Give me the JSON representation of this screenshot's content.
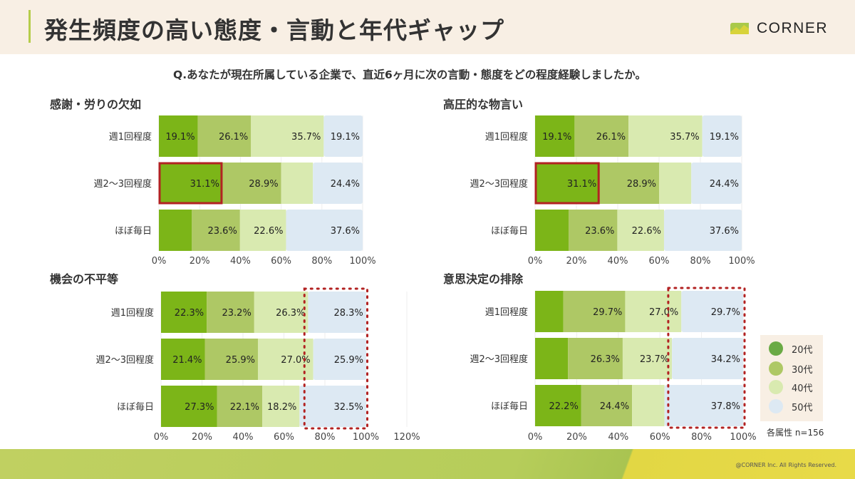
{
  "header": {
    "title": "発生頻度の高い態度・言動と年代ギャップ",
    "logo_text": "CORNER"
  },
  "question": "Q.あなたが現在所属している企業で、直近6ヶ月に次の言動・態度をどの程度経験しましたか。",
  "colors": {
    "20代": "#7cb518",
    "30代": "#aec865",
    "40代": "#d9eab0",
    "50代": "#dde9f3",
    "highlight_solid": "#b22222",
    "highlight_dotted": "#b22222"
  },
  "legend": {
    "items": [
      {
        "label": "20代",
        "color": "#6aaa45"
      },
      {
        "label": "30代",
        "color": "#aec865"
      },
      {
        "label": "40代",
        "color": "#d9eab0"
      },
      {
        "label": "50代",
        "color": "#dde9f3"
      }
    ],
    "note": "各属性 n=156"
  },
  "chart_data": [
    {
      "type": "bar",
      "orientation": "horizontal",
      "stacked": true,
      "title": "感謝・労りの欠如",
      "categories": [
        "週1回程度",
        "週2〜3回程度",
        "ほぼ毎日"
      ],
      "series": [
        {
          "name": "20代",
          "values": [
            19.1,
            31.1,
            16.2
          ],
          "labels": [
            "19.1%",
            "31.1%",
            ""
          ]
        },
        {
          "name": "30代",
          "values": [
            26.1,
            28.9,
            23.6
          ],
          "labels": [
            "26.1%",
            "28.9%",
            "23.6%"
          ]
        },
        {
          "name": "40代",
          "values": [
            35.7,
            15.6,
            22.6
          ],
          "labels": [
            "35.7%",
            "",
            "22.6%"
          ]
        },
        {
          "name": "50代",
          "values": [
            19.1,
            24.4,
            37.6
          ],
          "labels": [
            "19.1%",
            "24.4%",
            "37.6%"
          ]
        }
      ],
      "xticks": [
        "0%",
        "20%",
        "40%",
        "60%",
        "80%",
        "100%"
      ],
      "xlim": [
        0,
        100
      ],
      "highlight": {
        "style": "solid",
        "category": "週2〜3回程度",
        "series": "20代"
      }
    },
    {
      "type": "bar",
      "orientation": "horizontal",
      "stacked": true,
      "title": "高圧的な物言い",
      "categories": [
        "週1回程度",
        "週2〜3回程度",
        "ほぼ毎日"
      ],
      "series": [
        {
          "name": "20代",
          "values": [
            19.1,
            31.1,
            16.2
          ],
          "labels": [
            "19.1%",
            "31.1%",
            ""
          ]
        },
        {
          "name": "30代",
          "values": [
            26.1,
            28.9,
            23.6
          ],
          "labels": [
            "26.1%",
            "28.9%",
            "23.6%"
          ]
        },
        {
          "name": "40代",
          "values": [
            35.7,
            15.6,
            22.6
          ],
          "labels": [
            "35.7%",
            "",
            "22.6%"
          ]
        },
        {
          "name": "50代",
          "values": [
            19.1,
            24.4,
            37.6
          ],
          "labels": [
            "19.1%",
            "24.4%",
            "37.6%"
          ]
        }
      ],
      "xticks": [
        "0%",
        "20%",
        "40%",
        "60%",
        "80%",
        "100%"
      ],
      "xlim": [
        0,
        100
      ],
      "highlight": {
        "style": "solid",
        "category": "週2〜3回程度",
        "series": "20代"
      }
    },
    {
      "type": "bar",
      "orientation": "horizontal",
      "stacked": true,
      "title": "機会の不平等",
      "categories": [
        "週1回程度",
        "週2〜3回程度",
        "ほぼ毎日"
      ],
      "series": [
        {
          "name": "20代",
          "values": [
            22.3,
            21.4,
            27.3
          ],
          "labels": [
            "22.3%",
            "21.4%",
            "27.3%"
          ]
        },
        {
          "name": "30代",
          "values": [
            23.2,
            25.9,
            22.1
          ],
          "labels": [
            "23.2%",
            "25.9%",
            "22.1%"
          ]
        },
        {
          "name": "40代",
          "values": [
            26.3,
            27.0,
            18.2
          ],
          "labels": [
            "26.3%",
            "27.0%",
            "18.2%"
          ]
        },
        {
          "name": "50代",
          "values": [
            28.3,
            25.9,
            32.5
          ],
          "labels": [
            "28.3%",
            "25.9%",
            "32.5%"
          ]
        }
      ],
      "xticks": [
        "0%",
        "20%",
        "40%",
        "60%",
        "80%",
        "100%",
        "120%"
      ],
      "xlim": [
        0,
        120
      ],
      "highlight": {
        "style": "dotted",
        "range": [
          70,
          100
        ]
      }
    },
    {
      "type": "bar",
      "orientation": "horizontal",
      "stacked": true,
      "title": "意思決定の排除",
      "categories": [
        "週1回程度",
        "週2〜3回程度",
        "ほぼ毎日"
      ],
      "series": [
        {
          "name": "20代",
          "values": [
            13.6,
            15.8,
            22.2
          ],
          "labels": [
            "",
            "",
            "22.2%"
          ]
        },
        {
          "name": "30代",
          "values": [
            29.7,
            26.3,
            24.4
          ],
          "labels": [
            "29.7%",
            "26.3%",
            "24.4%"
          ]
        },
        {
          "name": "40代",
          "values": [
            27.0,
            23.7,
            15.6
          ],
          "labels": [
            "27.0%",
            "23.7%",
            ""
          ]
        },
        {
          "name": "50代",
          "values": [
            29.7,
            34.2,
            37.8
          ],
          "labels": [
            "29.7%",
            "34.2%",
            "37.8%"
          ]
        }
      ],
      "xticks": [
        "0%",
        "20%",
        "40%",
        "60%",
        "80%",
        "100%"
      ],
      "xlim": [
        0,
        100
      ],
      "highlight": {
        "style": "dotted",
        "range": [
          64,
          100
        ]
      }
    }
  ],
  "footer": {
    "copyright": "@CORNER Inc. All Rights Reserved."
  }
}
